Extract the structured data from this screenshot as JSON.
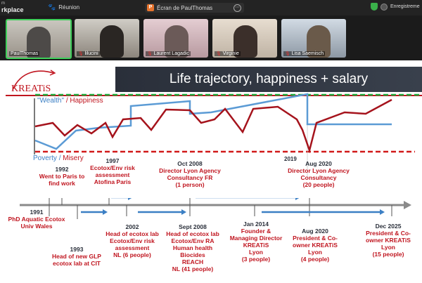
{
  "topbar": {
    "app_line1": "m",
    "app_line2": "rkplace",
    "meeting": "Réunion",
    "share_title": "Écran de PaulThomas",
    "share_icon": "P",
    "recording": "Enregistreme",
    "shield_color": "#3ab04a"
  },
  "participants": [
    {
      "name": "PaulThomas",
      "muted": false
    },
    {
      "name": "lilucini",
      "muted": true
    },
    {
      "name": "Laurent Lagadic",
      "muted": true
    },
    {
      "name": "Virginie",
      "muted": true
    },
    {
      "name": "Lisa Saemisch",
      "muted": true
    }
  ],
  "slide": {
    "logo_text": "KREATiS",
    "title": "Life trajectory, happiness + salary",
    "legend_wealth": "\"Wealth\"",
    "legend_slash": "/",
    "legend_happiness": "Happiness",
    "legend_poverty": "Poverty",
    "legend_misery": "Misery",
    "year_2019": "2019",
    "colors": {
      "accent_red": "#c0151f",
      "wealth_blue": "#5b9bd5",
      "top_green": "#22a83c",
      "happiness_red": "#a5131c",
      "title_bg": "#2a2f3a"
    },
    "upper_labels": [
      {
        "id": "1992",
        "lines": [
          "1992",
          "Went to Paris to",
          "find work"
        ]
      },
      {
        "id": "1997",
        "lines": [
          "1997",
          "Ecotox/Env risk",
          "assessment",
          "Atofina Paris"
        ]
      },
      {
        "id": "oct2008",
        "lines": [
          "Oct 2008",
          "Director Lyon Agency",
          "Consultancy FR",
          "(1 person)"
        ]
      },
      {
        "id": "aug2020a",
        "lines": [
          "Aug 2020",
          "Director Lyon Agency",
          "Consultancy",
          "(20 people)"
        ]
      }
    ],
    "lower_labels": [
      {
        "id": "1991",
        "lines": [
          "1991",
          "PhD Aquatic Ecotox",
          "Univ Wales"
        ]
      },
      {
        "id": "1993",
        "lines": [
          "1993",
          "Head of new GLP",
          "ecotox lab at CIT"
        ]
      },
      {
        "id": "2002",
        "lines": [
          "2002",
          "Head of ecotox lab",
          "Ecotox/Env risk",
          "assessment",
          "NL (6 people)"
        ]
      },
      {
        "id": "sept2008",
        "lines": [
          "Sept 2008",
          "Head of ecotox lab",
          "Ecotox/Env RA",
          "Human health",
          "Biocides",
          "REACH",
          "NL (41 people)"
        ]
      },
      {
        "id": "jan2014",
        "lines": [
          "Jan 2014",
          "Founder &",
          "Managing Director",
          "KREATiS",
          "Lyon",
          "(3 people)"
        ]
      },
      {
        "id": "aug2020b",
        "lines": [
          "Aug 2020",
          "President & Co-",
          "owner KREATiS",
          "Lyon",
          "(4 people)"
        ]
      },
      {
        "id": "dec2025",
        "lines": [
          "Dec 2025",
          "President & Co-",
          "owner KREATiS",
          "Lyon",
          "(15 people)"
        ]
      }
    ]
  }
}
